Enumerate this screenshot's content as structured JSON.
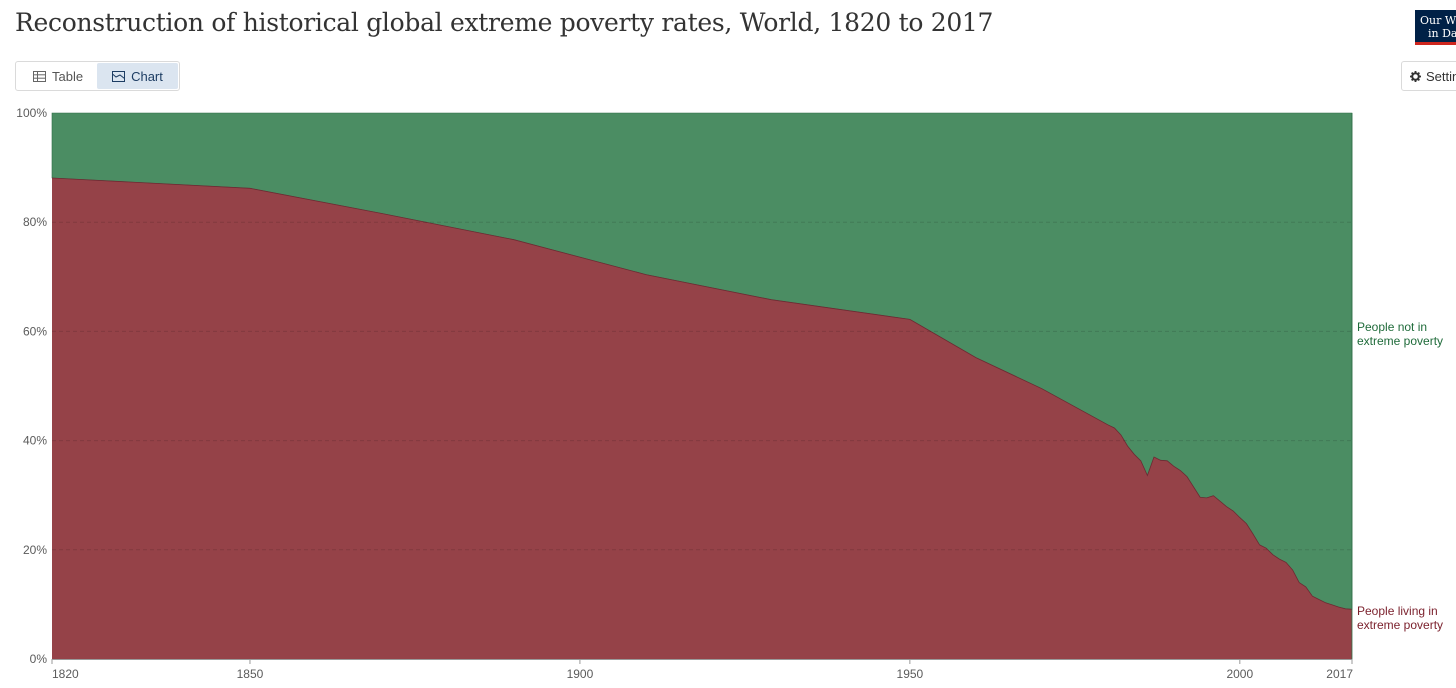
{
  "title": "Reconstruction of historical global extreme poverty rates, World, 1820 to 2017",
  "logo": {
    "line1": "Our World",
    "line2": "in Data"
  },
  "tabs": [
    {
      "label": "Table",
      "icon": "table-icon",
      "active": false
    },
    {
      "label": "Chart",
      "icon": "chart-icon",
      "active": true
    }
  ],
  "settings": {
    "label": "Settings",
    "icon": "gear-icon"
  },
  "chart_data": {
    "type": "area",
    "stacked": true,
    "stack_mode": "relative",
    "xlim": [
      1820,
      2017
    ],
    "ylim": [
      0,
      100
    ],
    "x_ticks": [
      1820,
      1850,
      1900,
      1950,
      2000,
      2017
    ],
    "y_ticks": [
      0,
      20,
      40,
      60,
      80,
      100
    ],
    "y_tick_labels": [
      "0%",
      "20%",
      "40%",
      "60%",
      "80%",
      "100%"
    ],
    "grid": "horizontal dashed",
    "legend_placement": "right, inline labels",
    "series": [
      {
        "name": "People living in extreme poverty",
        "color": "#954248",
        "label_color": "#7a1f2b",
        "x": [
          1820,
          1850,
          1870,
          1890,
          1910,
          1929,
          1950,
          1960,
          1970,
          1980,
          1981,
          1982,
          1983,
          1984,
          1985,
          1986,
          1987,
          1988,
          1989,
          1990,
          1991,
          1992,
          1993,
          1994,
          1995,
          1996,
          1997,
          1998,
          1999,
          2000,
          2001,
          2002,
          2003,
          2004,
          2005,
          2006,
          2007,
          2008,
          2009,
          2010,
          2011,
          2012,
          2013,
          2014,
          2015,
          2016,
          2017
        ],
        "y": [
          88.1,
          86.2,
          81.6,
          76.8,
          70.4,
          65.8,
          62.2,
          55.2,
          49.5,
          42.9,
          42.3,
          41.0,
          39.0,
          37.5,
          36.3,
          33.6,
          37.0,
          36.4,
          36.3,
          35.3,
          34.5,
          33.4,
          31.5,
          29.6,
          29.5,
          29.9,
          28.9,
          27.9,
          27.1,
          25.9,
          24.8,
          22.9,
          20.9,
          20.3,
          19.1,
          18.3,
          17.7,
          16.3,
          14.0,
          13.2,
          11.5,
          10.9,
          10.3,
          9.9,
          9.5,
          9.2,
          9.1
        ]
      },
      {
        "name": "People not in extreme poverty",
        "color": "#4b8d63",
        "label_color": "#1f6b3a"
      }
    ],
    "legend_labels": [
      {
        "series": "People not in extreme poverty",
        "lines": [
          "People not in",
          "extreme poverty"
        ]
      },
      {
        "series": "People living in extreme poverty",
        "lines": [
          "People living in",
          "extreme poverty"
        ]
      }
    ]
  }
}
